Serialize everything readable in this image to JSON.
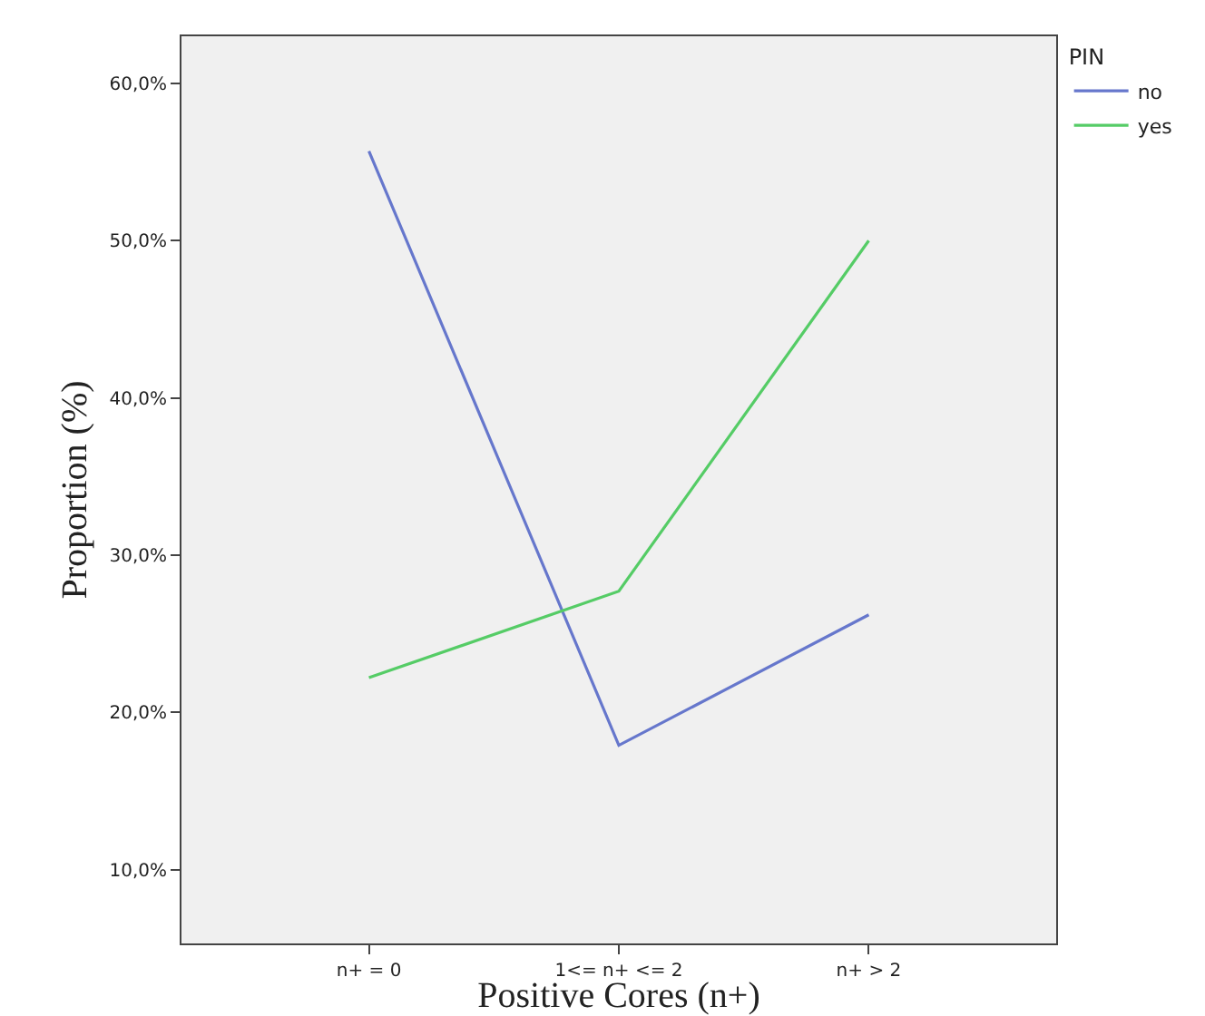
{
  "chart_data": {
    "type": "line",
    "xlabel": "Positive Cores (n+)",
    "ylabel": "Proportion (%)",
    "legend_title": "PIN",
    "categories": [
      "n+ = 0",
      "1<= n+ <= 2",
      "n+ > 2"
    ],
    "series": [
      {
        "name": "no",
        "color": "#6677cc",
        "values": [
          55.7,
          17.9,
          26.2
        ]
      },
      {
        "name": "yes",
        "color": "#55cc66",
        "values": [
          22.2,
          27.7,
          50.0
        ]
      }
    ],
    "ylim": [
      5.3,
      63
    ],
    "yticks": [
      {
        "value": 10,
        "label": "10,0%"
      },
      {
        "value": 20,
        "label": "20,0%"
      },
      {
        "value": 30,
        "label": "30,0%"
      },
      {
        "value": 40,
        "label": "40,0%"
      },
      {
        "value": 50,
        "label": "50,0%"
      },
      {
        "value": 60,
        "label": "60,0%"
      }
    ],
    "grid": false,
    "legend": "top right",
    "marker": "none",
    "line_style": "solid"
  }
}
